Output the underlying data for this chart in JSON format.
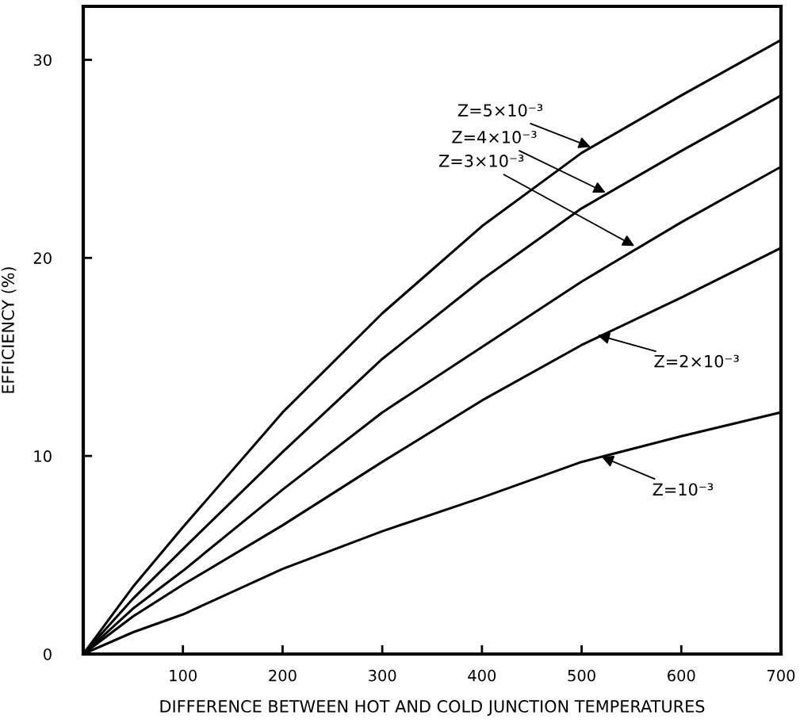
{
  "chart_data": {
    "type": "line",
    "xlabel": "DIFFERENCE BETWEEN HOT AND COLD JUNCTION TEMPERATURES",
    "ylabel": "EFFICIENCY (%)",
    "x": [
      0,
      50,
      100,
      200,
      300,
      400,
      500,
      600,
      700
    ],
    "series": [
      {
        "color": "#000000",
        "values": [
          0,
          3.4,
          6.4,
          12.2,
          17.2,
          21.6,
          25.3,
          28.2,
          31.0
        ]
      },
      {
        "color": "#000000",
        "values": [
          0,
          2.8,
          5.3,
          10.2,
          14.9,
          18.9,
          22.5,
          25.4,
          28.2
        ]
      },
      {
        "color": "#000000",
        "values": [
          0,
          2.3,
          4.2,
          8.3,
          12.2,
          15.5,
          18.8,
          21.8,
          24.6
        ]
      },
      {
        "color": "#000000",
        "values": [
          0,
          1.9,
          3.5,
          6.5,
          9.7,
          12.8,
          15.6,
          18.0,
          20.5
        ]
      },
      {
        "color": "#000000",
        "values": [
          0,
          1.1,
          2.0,
          4.3,
          6.2,
          7.9,
          9.7,
          11.0,
          12.2
        ]
      }
    ],
    "annotations": [
      {
        "text": "Z=5×10⁻³",
        "x": 509,
        "y": 25.6
      },
      {
        "text": "Z=4×10⁻³",
        "x": 524,
        "y": 23.3
      },
      {
        "text": "Z=3×10⁻³",
        "x": 553,
        "y": 20.6
      },
      {
        "text": "Z=2×10⁻³",
        "x": 516,
        "y": 16.1
      },
      {
        "text": "Z=10⁻³",
        "x": 520,
        "y": 9.96
      }
    ],
    "xlim": [
      0,
      700
    ],
    "ylim": [
      0,
      32.7
    ],
    "xticks": [
      {
        "value": 0,
        "label": null
      },
      100,
      200,
      300,
      400,
      500,
      600,
      700
    ],
    "yticks": [
      0,
      10,
      20,
      30
    ],
    "grid": false,
    "legend": false,
    "marker": "none",
    "line_style": "solid"
  }
}
